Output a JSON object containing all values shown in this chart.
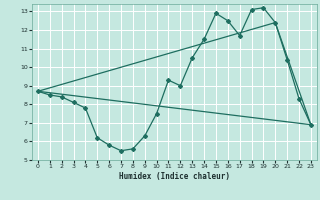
{
  "xlabel": "Humidex (Indice chaleur)",
  "xlim": [
    -0.5,
    23.5
  ],
  "ylim": [
    5,
    13.4
  ],
  "xticks": [
    0,
    1,
    2,
    3,
    4,
    5,
    6,
    7,
    8,
    9,
    10,
    11,
    12,
    13,
    14,
    15,
    16,
    17,
    18,
    19,
    20,
    21,
    22,
    23
  ],
  "yticks": [
    5,
    6,
    7,
    8,
    9,
    10,
    11,
    12,
    13
  ],
  "bg_color": "#c5e8e0",
  "line_color": "#1e6e60",
  "grid_color": "#ffffff",
  "line1_x": [
    0,
    1,
    2,
    3,
    4,
    5,
    6,
    7,
    8,
    9,
    10,
    11,
    12,
    13,
    14,
    15,
    16,
    17,
    18,
    19,
    20,
    21,
    22,
    23
  ],
  "line1_y": [
    8.7,
    8.5,
    8.4,
    8.1,
    7.8,
    6.2,
    5.8,
    5.5,
    5.6,
    6.3,
    7.5,
    9.3,
    9.0,
    10.5,
    11.5,
    12.9,
    12.5,
    11.7,
    13.1,
    13.2,
    12.4,
    10.4,
    8.3,
    6.9
  ],
  "line2_x": [
    0,
    23
  ],
  "line2_y": [
    8.7,
    6.9
  ],
  "line3_x": [
    0,
    20,
    23
  ],
  "line3_y": [
    8.7,
    12.4,
    6.9
  ]
}
